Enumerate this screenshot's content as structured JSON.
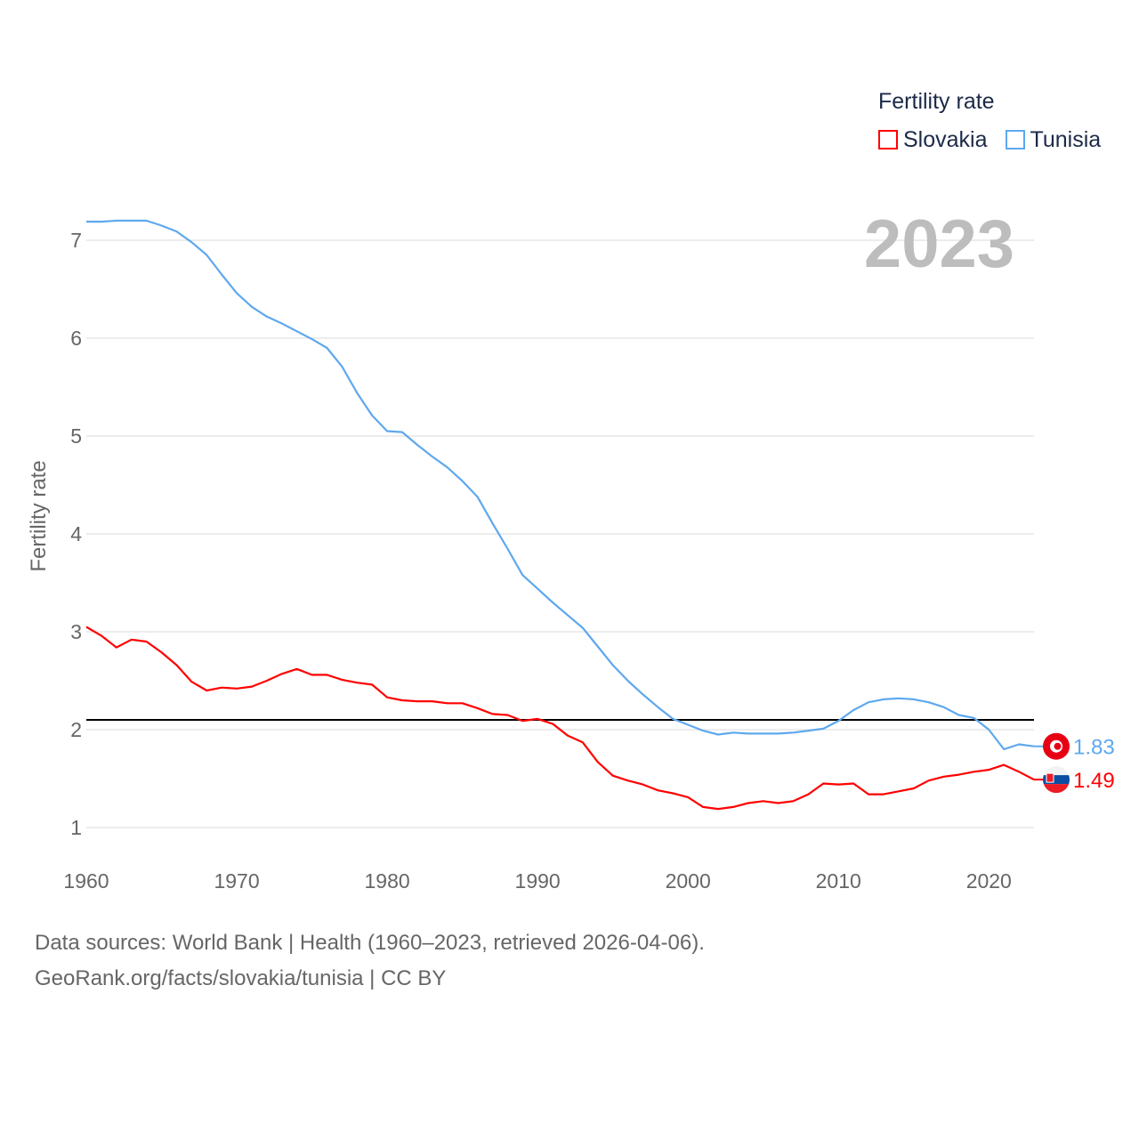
{
  "chart_data": {
    "type": "line",
    "title": "Fertility rate",
    "ylabel": "Fertility rate",
    "xlabel": "",
    "year_label": "2023",
    "xlim": [
      1960,
      2023
    ],
    "ylim": [
      0.7,
      7.5
    ],
    "x_ticks": [
      1960,
      1970,
      1980,
      1990,
      2000,
      2010,
      2020
    ],
    "y_ticks": [
      1,
      2,
      3,
      4,
      5,
      6,
      7
    ],
    "grid": true,
    "legend_position": "top-right",
    "reference_line": 2.1,
    "x": [
      1960,
      1961,
      1962,
      1963,
      1964,
      1965,
      1966,
      1967,
      1968,
      1969,
      1970,
      1971,
      1972,
      1973,
      1974,
      1975,
      1976,
      1977,
      1978,
      1979,
      1980,
      1981,
      1982,
      1983,
      1984,
      1985,
      1986,
      1987,
      1988,
      1989,
      1990,
      1991,
      1992,
      1993,
      1994,
      1995,
      1996,
      1997,
      1998,
      1999,
      2000,
      2001,
      2002,
      2003,
      2004,
      2005,
      2006,
      2007,
      2008,
      2009,
      2010,
      2011,
      2012,
      2013,
      2014,
      2015,
      2016,
      2017,
      2018,
      2019,
      2020,
      2021,
      2022,
      2023
    ],
    "series": [
      {
        "name": "Slovakia",
        "color": "#ff0000",
        "end_label": "1.49",
        "values": [
          3.05,
          2.96,
          2.84,
          2.92,
          2.9,
          2.79,
          2.66,
          2.49,
          2.4,
          2.43,
          2.42,
          2.44,
          2.5,
          2.57,
          2.62,
          2.56,
          2.56,
          2.51,
          2.48,
          2.46,
          2.33,
          2.3,
          2.29,
          2.29,
          2.27,
          2.27,
          2.22,
          2.16,
          2.15,
          2.09,
          2.11,
          2.06,
          1.94,
          1.87,
          1.67,
          1.53,
          1.48,
          1.44,
          1.38,
          1.35,
          1.31,
          1.21,
          1.19,
          1.21,
          1.25,
          1.27,
          1.25,
          1.27,
          1.34,
          1.45,
          1.44,
          1.45,
          1.34,
          1.34,
          1.37,
          1.4,
          1.48,
          1.52,
          1.54,
          1.57,
          1.59,
          1.64,
          1.57,
          1.49
        ]
      },
      {
        "name": "Tunisia",
        "color": "#5ea8ee",
        "end_label": "1.83",
        "values": [
          7.19,
          7.19,
          7.2,
          7.2,
          7.2,
          7.15,
          7.09,
          6.98,
          6.85,
          6.65,
          6.46,
          6.32,
          6.22,
          6.15,
          6.07,
          5.99,
          5.9,
          5.71,
          5.44,
          5.21,
          5.05,
          5.04,
          4.91,
          4.79,
          4.68,
          4.54,
          4.38,
          4.11,
          3.85,
          3.58,
          3.44,
          3.3,
          3.17,
          3.04,
          2.85,
          2.66,
          2.5,
          2.36,
          2.23,
          2.11,
          2.05,
          1.99,
          1.95,
          1.97,
          1.96,
          1.96,
          1.96,
          1.97,
          1.99,
          2.01,
          2.09,
          2.2,
          2.28,
          2.31,
          2.32,
          2.31,
          2.28,
          2.23,
          2.15,
          2.12,
          2.0,
          1.8,
          1.85,
          1.83
        ]
      }
    ]
  },
  "footer": {
    "line1": "Data sources: World Bank | Health (1960–2023, retrieved 2026-04-06).",
    "line2": "GeoRank.org/facts/slovakia/tunisia | CC BY"
  }
}
